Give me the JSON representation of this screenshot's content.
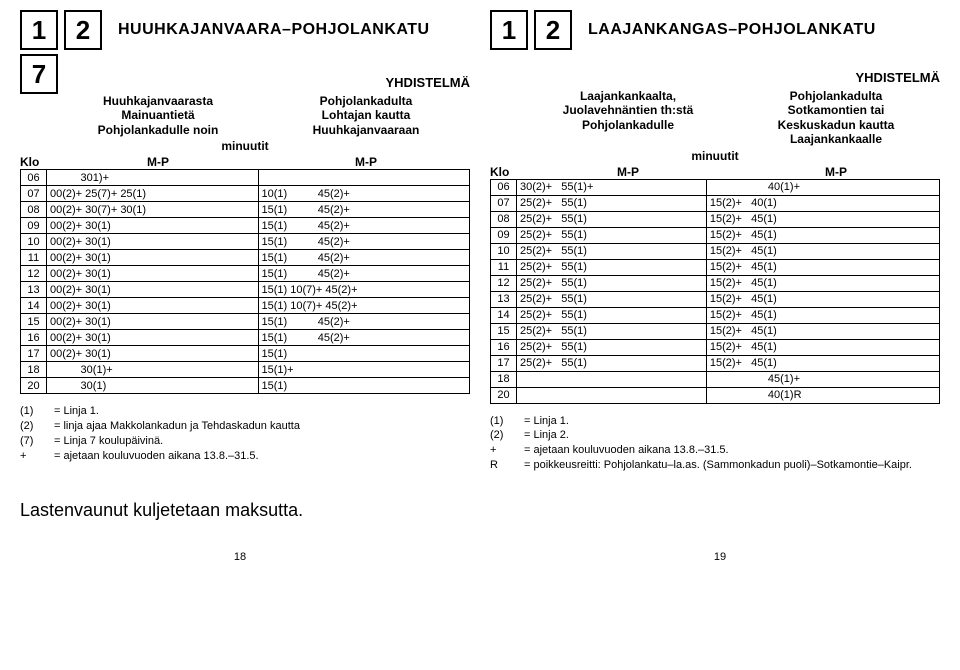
{
  "left": {
    "boxes": [
      "1",
      "2",
      "7"
    ],
    "route": "HUUHKAJANVAARA–POHJOLANKATU",
    "combo": "YHDISTELMÄ",
    "dir1": "Huuhkajanvaarasta\nMainuantietä\nPohjolankadulle noin",
    "dir2": "Pohjolankadulta\nLohtajan kautta\nHuuhkajanvaaraan",
    "minlabel": "minuutit",
    "klo": "Klo",
    "mp": "M-P",
    "rows": [
      {
        "h": "06",
        "a": "          301)+",
        "b": ""
      },
      {
        "h": "07",
        "a": "00(2)+ 25(7)+ 25(1)",
        "b": "10(1)          45(2)+"
      },
      {
        "h": "08",
        "a": "00(2)+ 30(7)+ 30(1)",
        "b": "15(1)          45(2)+"
      },
      {
        "h": "09",
        "a": "00(2)+ 30(1)",
        "b": "15(1)          45(2)+"
      },
      {
        "h": "10",
        "a": "00(2)+ 30(1)",
        "b": "15(1)          45(2)+"
      },
      {
        "h": "11",
        "a": "00(2)+ 30(1)",
        "b": "15(1)          45(2)+"
      },
      {
        "h": "12",
        "a": "00(2)+ 30(1)",
        "b": "15(1)          45(2)+"
      },
      {
        "h": "13",
        "a": "00(2)+ 30(1)",
        "b": "15(1) 10(7)+ 45(2)+"
      },
      {
        "h": "14",
        "a": "00(2)+ 30(1)",
        "b": "15(1) 10(7)+ 45(2)+"
      },
      {
        "h": "15",
        "a": "00(2)+ 30(1)",
        "b": "15(1)          45(2)+"
      },
      {
        "h": "16",
        "a": "00(2)+ 30(1)",
        "b": "15(1)          45(2)+"
      },
      {
        "h": "17",
        "a": "00(2)+ 30(1)",
        "b": "15(1)"
      },
      {
        "h": "18",
        "a": "          30(1)+",
        "b": "15(1)+"
      },
      {
        "h": "20",
        "a": "          30(1)",
        "b": "15(1)"
      }
    ],
    "legend": [
      {
        "k": "(1)",
        "v": "= Linja 1."
      },
      {
        "k": "(2)",
        "v": "= linja ajaa Makkolankadun ja Tehdaskadun kautta"
      },
      {
        "k": "(7)",
        "v": "= Linja 7 koulupäivinä."
      },
      {
        "k": "+",
        "v": "= ajetaan kouluvuoden aikana 13.8.–31.5."
      }
    ],
    "stroller": "Lastenvaunut kuljetetaan maksutta.",
    "pagenum": "18"
  },
  "right": {
    "boxes": [
      "1",
      "2"
    ],
    "route": "LAAJANKANGAS–POHJOLANKATU",
    "combo": "YHDISTELMÄ",
    "dir1": "Laajankankaalta,\nJuolavehnäntien th:stä\nPohjolankadulle",
    "dir2": "Pohjolankadulta\nSotkamontien tai\nKeskuskadun kautta\nLaajankankaalle",
    "minlabel": "minuutit",
    "klo": "Klo",
    "mp": "M-P",
    "rows": [
      {
        "h": "06",
        "a": "30(2)+   55(1)+",
        "b": "                   40(1)+"
      },
      {
        "h": "07",
        "a": "25(2)+   55(1)",
        "b": "15(2)+   40(1)"
      },
      {
        "h": "08",
        "a": "25(2)+   55(1)",
        "b": "15(2)+   45(1)"
      },
      {
        "h": "09",
        "a": "25(2)+   55(1)",
        "b": "15(2)+   45(1)"
      },
      {
        "h": "10",
        "a": "25(2)+   55(1)",
        "b": "15(2)+   45(1)"
      },
      {
        "h": "11",
        "a": "25(2)+   55(1)",
        "b": "15(2)+   45(1)"
      },
      {
        "h": "12",
        "a": "25(2)+   55(1)",
        "b": "15(2)+   45(1)"
      },
      {
        "h": "13",
        "a": "25(2)+   55(1)",
        "b": "15(2)+   45(1)"
      },
      {
        "h": "14",
        "a": "25(2)+   55(1)",
        "b": "15(2)+   45(1)"
      },
      {
        "h": "15",
        "a": "25(2)+   55(1)",
        "b": "15(2)+   45(1)"
      },
      {
        "h": "16",
        "a": "25(2)+   55(1)",
        "b": "15(2)+   45(1)"
      },
      {
        "h": "17",
        "a": "25(2)+   55(1)",
        "b": "15(2)+   45(1)"
      },
      {
        "h": "18",
        "a": "",
        "b": "                   45(1)+"
      },
      {
        "h": "20",
        "a": "",
        "b": "                   40(1)R"
      }
    ],
    "legend": [
      {
        "k": "(1)",
        "v": "= Linja 1."
      },
      {
        "k": "(2)",
        "v": "= Linja 2."
      },
      {
        "k": "+",
        "v": "= ajetaan kouluvuoden aikana 13.8.–31.5."
      },
      {
        "k": "R",
        "v": "= poikkeusreitti: Pohjolankatu–la.as. (Sammonkadun puoli)–Sotkamontie–Kaipr."
      }
    ],
    "pagenum": "19"
  }
}
